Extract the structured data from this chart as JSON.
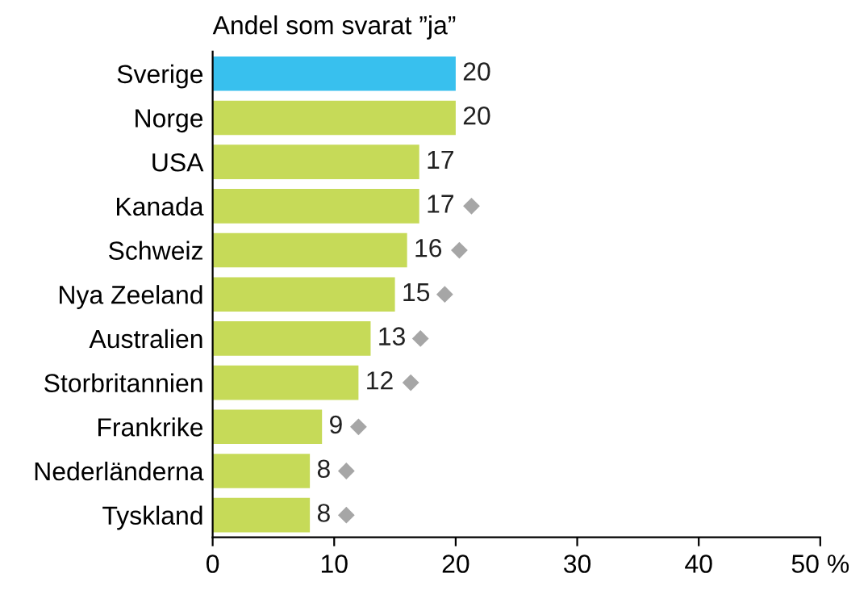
{
  "chart_data": {
    "type": "bar",
    "orientation": "horizontal",
    "title": "Andel som svarat ”ja”",
    "categories": [
      "Sverige",
      "Norge",
      "USA",
      "Kanada",
      "Schweiz",
      "Nya Zeeland",
      "Australien",
      "Storbritannien",
      "Frankrike",
      "Nederländerna",
      "Tyskland"
    ],
    "series": [
      {
        "values": [
          20,
          20,
          17,
          17,
          16,
          15,
          13,
          12,
          9,
          8,
          8
        ],
        "value_labels": [
          "20",
          "20",
          "17",
          "17",
          "16",
          "15",
          "13",
          "12",
          "9",
          "8",
          "8"
        ],
        "colors": [
          "#38c0ee",
          "#c6da58",
          "#c6da58",
          "#c6da58",
          "#c6da58",
          "#c6da58",
          "#c6da58",
          "#c6da58",
          "#c6da58",
          "#c6da58",
          "#c6da58"
        ]
      },
      {
        "type": "scatter",
        "color": "#a6a6a6",
        "marker": "diamond",
        "values": [
          null,
          null,
          null,
          21.3,
          20.3,
          19.1,
          17.1,
          16.3,
          12.0,
          11.0,
          11.0
        ]
      }
    ],
    "xlim": [
      0,
      50
    ],
    "xticks": [
      0,
      10,
      20,
      30,
      40,
      {
        "value": 50,
        "label": "50 %"
      }
    ],
    "grid": false
  }
}
